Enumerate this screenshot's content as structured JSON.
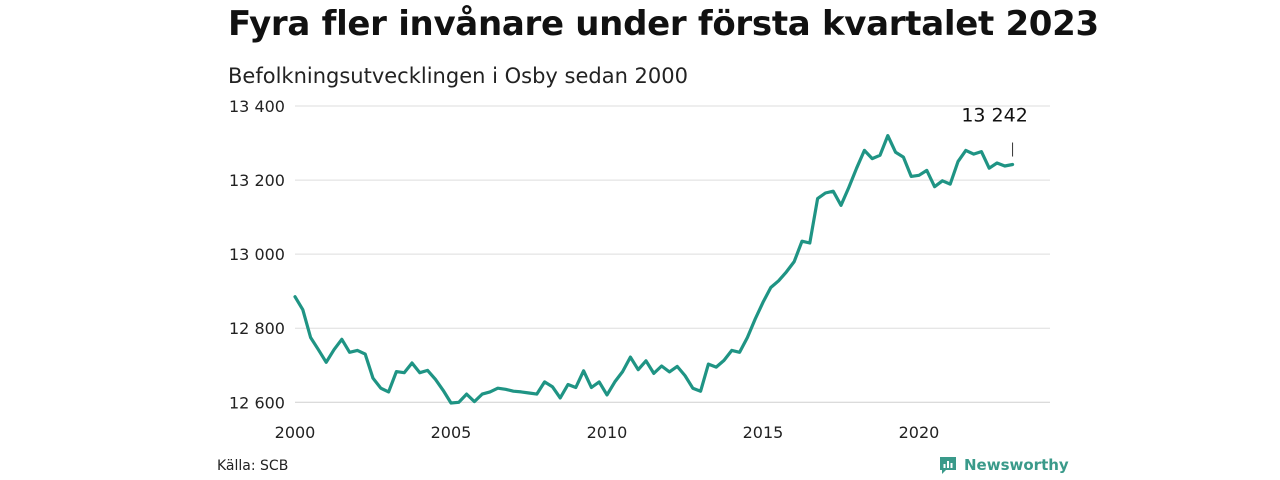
{
  "title": "Fyra fler invånare under första kvartalet 2023",
  "subtitle": "Befolkningsutvecklingen i Osby sedan 2000",
  "source": "Källa: SCB",
  "brand": {
    "name": "Newsworthy",
    "icon": "newsworthy-logo-icon",
    "color": "#3a9a8a"
  },
  "chart_data": {
    "type": "line",
    "line_color": "#1f9484",
    "grid": true,
    "xlim": [
      2000,
      2024.2
    ],
    "ylim": [
      12590,
      13400
    ],
    "yticks": [
      {
        "value": 12600,
        "label": "12 600"
      },
      {
        "value": 12800,
        "label": "12 800"
      },
      {
        "value": 13000,
        "label": "13 000"
      },
      {
        "value": 13200,
        "label": "13 200"
      },
      {
        "value": 13400,
        "label": "13 400"
      }
    ],
    "xticks": [
      {
        "value": 2000,
        "label": "2000"
      },
      {
        "value": 2005,
        "label": "2005"
      },
      {
        "value": 2010,
        "label": "2010"
      },
      {
        "value": 2015,
        "label": "2015"
      },
      {
        "value": 2020,
        "label": "2020"
      }
    ],
    "annotation": {
      "label": "13 242",
      "x": 2023.0,
      "y": 13242
    },
    "series": [
      {
        "x": [
          2000.0,
          2000.25,
          2000.5,
          2000.75,
          2001.0,
          2001.25,
          2001.5,
          2001.75,
          2002.0,
          2002.25,
          2002.5,
          2002.75,
          2003.0,
          2003.25,
          2003.5,
          2003.75,
          2004.0,
          2004.25,
          2004.5,
          2004.75,
          2005.0,
          2005.25,
          2005.5,
          2005.75,
          2006.0,
          2006.25,
          2006.5,
          2006.75,
          2007.0,
          2007.25,
          2007.5,
          2007.75,
          2008.0,
          2008.25,
          2008.5,
          2008.75,
          2009.0,
          2009.25,
          2009.5,
          2009.75,
          2010.0,
          2010.25,
          2010.5,
          2010.75,
          2011.0,
          2011.25,
          2011.5,
          2011.75,
          2012.0,
          2012.25,
          2012.5,
          2012.75,
          2013.0,
          2013.25,
          2013.5,
          2013.75,
          2014.0,
          2014.25,
          2014.5,
          2014.75,
          2015.0,
          2015.25,
          2015.5,
          2015.75,
          2016.0,
          2016.25,
          2016.5,
          2016.75,
          2017.0,
          2017.25,
          2017.5,
          2017.75,
          2018.0,
          2018.25,
          2018.5,
          2018.75,
          2019.0,
          2019.25,
          2019.5,
          2019.75,
          2020.0,
          2020.25,
          2020.5,
          2020.75,
          2021.0,
          2021.25,
          2021.5,
          2021.75,
          2022.0,
          2022.25,
          2022.5,
          2022.75,
          2023.0
        ],
        "y": [
          12885,
          12850,
          12775,
          12742,
          12708,
          12742,
          12770,
          12735,
          12740,
          12730,
          12665,
          12638,
          12628,
          12683,
          12680,
          12706,
          12680,
          12686,
          12662,
          12632,
          12598,
          12600,
          12622,
          12602,
          12622,
          12628,
          12638,
          12635,
          12630,
          12628,
          12625,
          12622,
          12655,
          12642,
          12612,
          12648,
          12640,
          12685,
          12640,
          12655,
          12620,
          12655,
          12683,
          12722,
          12688,
          12712,
          12678,
          12698,
          12682,
          12697,
          12672,
          12638,
          12630,
          12703,
          12695,
          12713,
          12740,
          12735,
          12775,
          12825,
          12870,
          12910,
          12928,
          12952,
          12980,
          13035,
          13030,
          13150,
          13165,
          13170,
          13132,
          13180,
          13232,
          13280,
          13258,
          13267,
          13320,
          13275,
          13262,
          13210,
          13213,
          13226,
          13182,
          13198,
          13189,
          13250,
          13280,
          13270,
          13277,
          13232,
          13246,
          13238,
          13242
        ]
      }
    ]
  }
}
